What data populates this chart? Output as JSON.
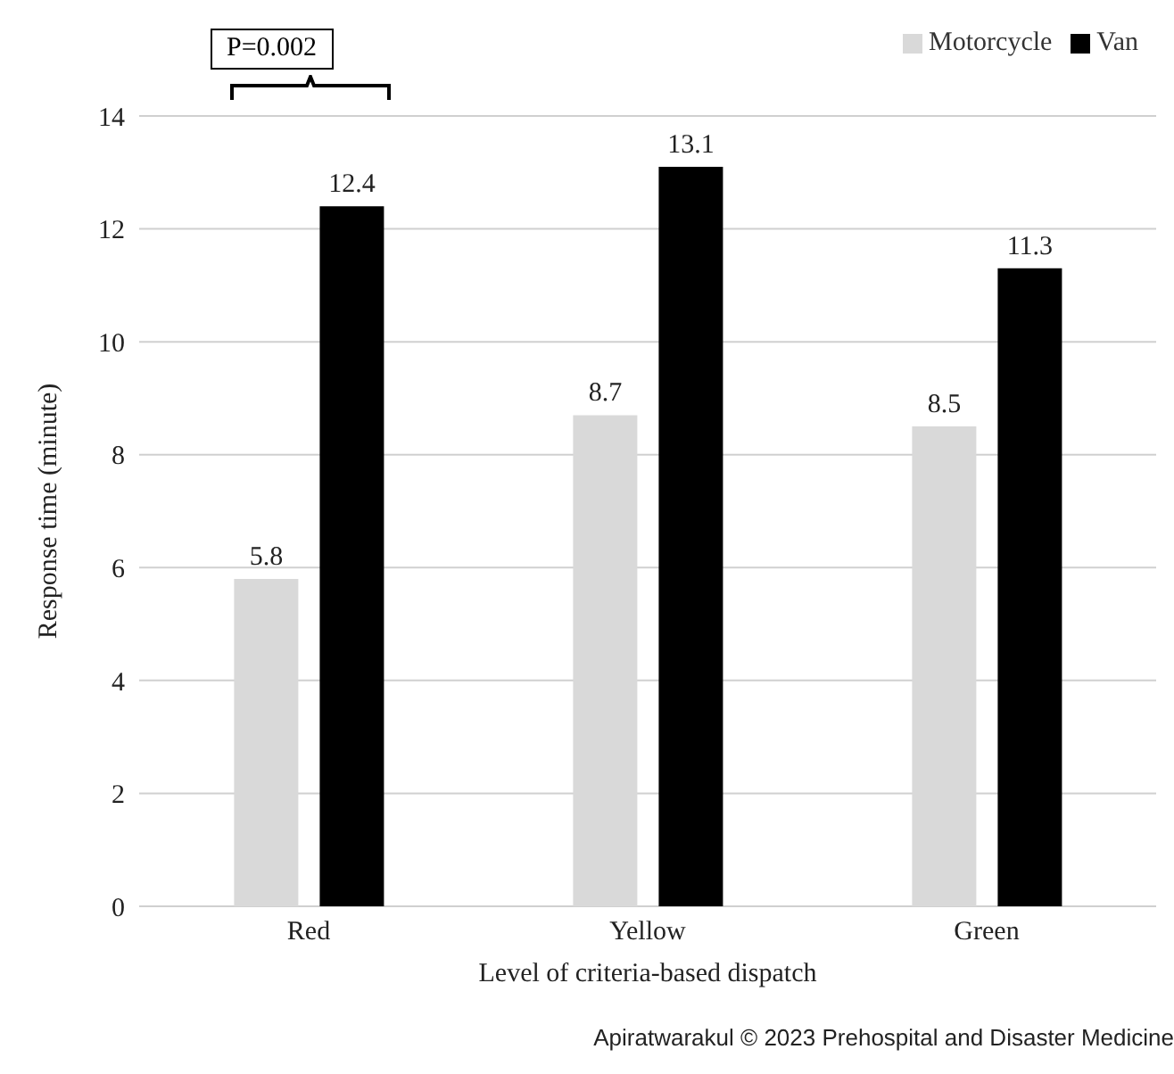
{
  "chart_data": {
    "type": "bar",
    "xlabel": "Level of criteria-based dispatch",
    "ylabel": "Response time (minute)",
    "categories": [
      "Red",
      "Yellow",
      "Green"
    ],
    "series": [
      {
        "name": "Motorcycle",
        "color": "#d9d9d9",
        "values": [
          5.8,
          8.7,
          8.5
        ]
      },
      {
        "name": "Van",
        "color": "#000000",
        "values": [
          12.4,
          13.1,
          11.3
        ]
      }
    ],
    "ylim": [
      0,
      14
    ],
    "yticks": [
      0,
      2,
      4,
      6,
      8,
      10,
      12,
      14
    ],
    "grid": "y",
    "legend": "top right",
    "data_labels": true,
    "annotations": [
      "P=0.002",
      "Apiratwarakul © 2023 Prehospital and Disaster Medicine"
    ]
  }
}
